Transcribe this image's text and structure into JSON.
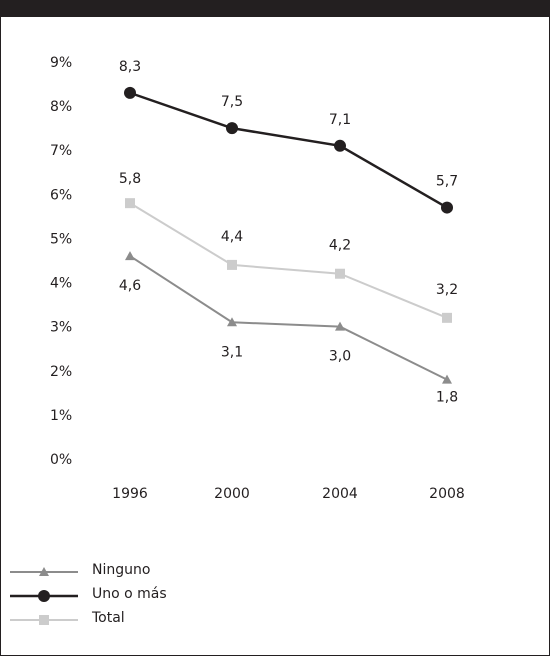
{
  "chart_data": {
    "type": "line",
    "title": "",
    "xlabel": "",
    "ylabel": "",
    "categories": [
      "1996",
      "2000",
      "2004",
      "2008"
    ],
    "ylim": [
      0,
      9
    ],
    "y_ticks": [
      "0%",
      "1%",
      "2%",
      "3%",
      "4%",
      "5%",
      "6%",
      "7%",
      "8%",
      "9%"
    ],
    "grid": false,
    "legend_position": "bottom-left",
    "series": [
      {
        "name": "Ninguno",
        "values": [
          4.6,
          3.1,
          3.0,
          1.8
        ],
        "labels": [
          "4,6",
          "3,1",
          "3,0",
          "1,8"
        ],
        "color": "#8c8c8c",
        "marker": "triangle"
      },
      {
        "name": "Uno o más",
        "values": [
          8.3,
          7.5,
          7.1,
          5.7
        ],
        "labels": [
          "8,3",
          "7,5",
          "7,1",
          "5,7"
        ],
        "color": "#231f20",
        "marker": "circle"
      },
      {
        "name": "Total",
        "values": [
          5.8,
          4.4,
          4.2,
          3.2
        ],
        "labels": [
          "5,8",
          "4,4",
          "4,2",
          "3,2"
        ],
        "color": "#cccccc",
        "marker": "square"
      }
    ]
  }
}
